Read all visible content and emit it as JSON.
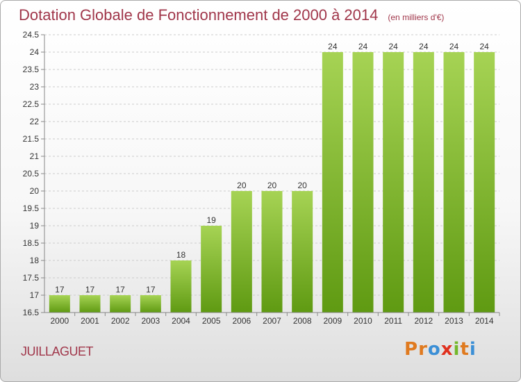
{
  "title": "Dotation Globale de Fonctionnement de 2000 à 2014",
  "subtitle": "(en milliers d'€)",
  "town": "JUILLAGUET",
  "logo": {
    "letters": [
      "P",
      "r",
      "o",
      "x",
      "i",
      "t",
      "i"
    ],
    "colors": [
      "#e07a1f",
      "#e07a1f",
      "#3b8fd6",
      "#e0301e",
      "#73b72b",
      "#e07a1f",
      "#3b8fd6"
    ]
  },
  "colors": {
    "bar_top": "#a6d354",
    "bar_bottom": "#5f9a12",
    "title": "#a0364a",
    "grid": "#cccccc"
  },
  "chart_data": {
    "type": "bar",
    "categories": [
      "2000",
      "2001",
      "2002",
      "2003",
      "2004",
      "2005",
      "2006",
      "2007",
      "2008",
      "2009",
      "2010",
      "2011",
      "2012",
      "2013",
      "2014"
    ],
    "values": [
      17,
      17,
      17,
      17,
      18,
      19,
      20,
      20,
      20,
      24,
      24,
      24,
      24,
      24,
      24
    ],
    "data_labels": [
      "17",
      "17",
      "17",
      "17",
      "18",
      "19",
      "20",
      "20",
      "20",
      "24",
      "24",
      "24",
      "24",
      "24",
      "24"
    ],
    "ylim": [
      16.5,
      24.5
    ],
    "yticks": [
      "16.5",
      "17",
      "17.5",
      "18",
      "18.5",
      "19",
      "19.5",
      "20",
      "20.5",
      "21",
      "21.5",
      "22",
      "22.5",
      "23",
      "23.5",
      "24",
      "24.5"
    ],
    "grid": true
  }
}
